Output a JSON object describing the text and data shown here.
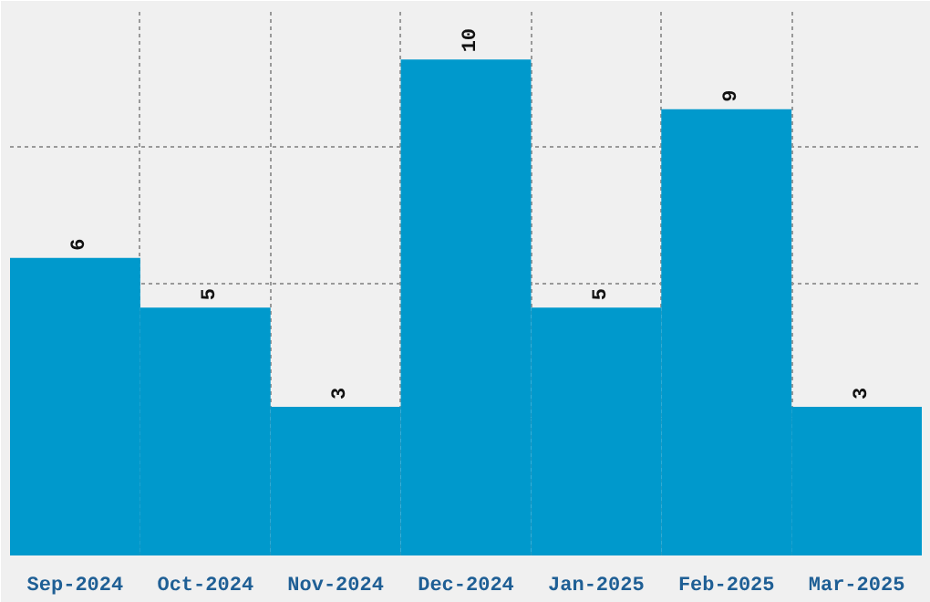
{
  "chart_data": {
    "type": "bar",
    "categories": [
      "Sep-2024",
      "Oct-2024",
      "Nov-2024",
      "Dec-2024",
      "Jan-2025",
      "Feb-2025",
      "Mar-2025"
    ],
    "values": [
      6,
      5,
      3,
      10,
      5,
      9,
      3
    ],
    "color": "#0099cc",
    "ylim": [
      0,
      11
    ],
    "tick_labels": "x",
    "grid": true,
    "data_labels": true
  }
}
